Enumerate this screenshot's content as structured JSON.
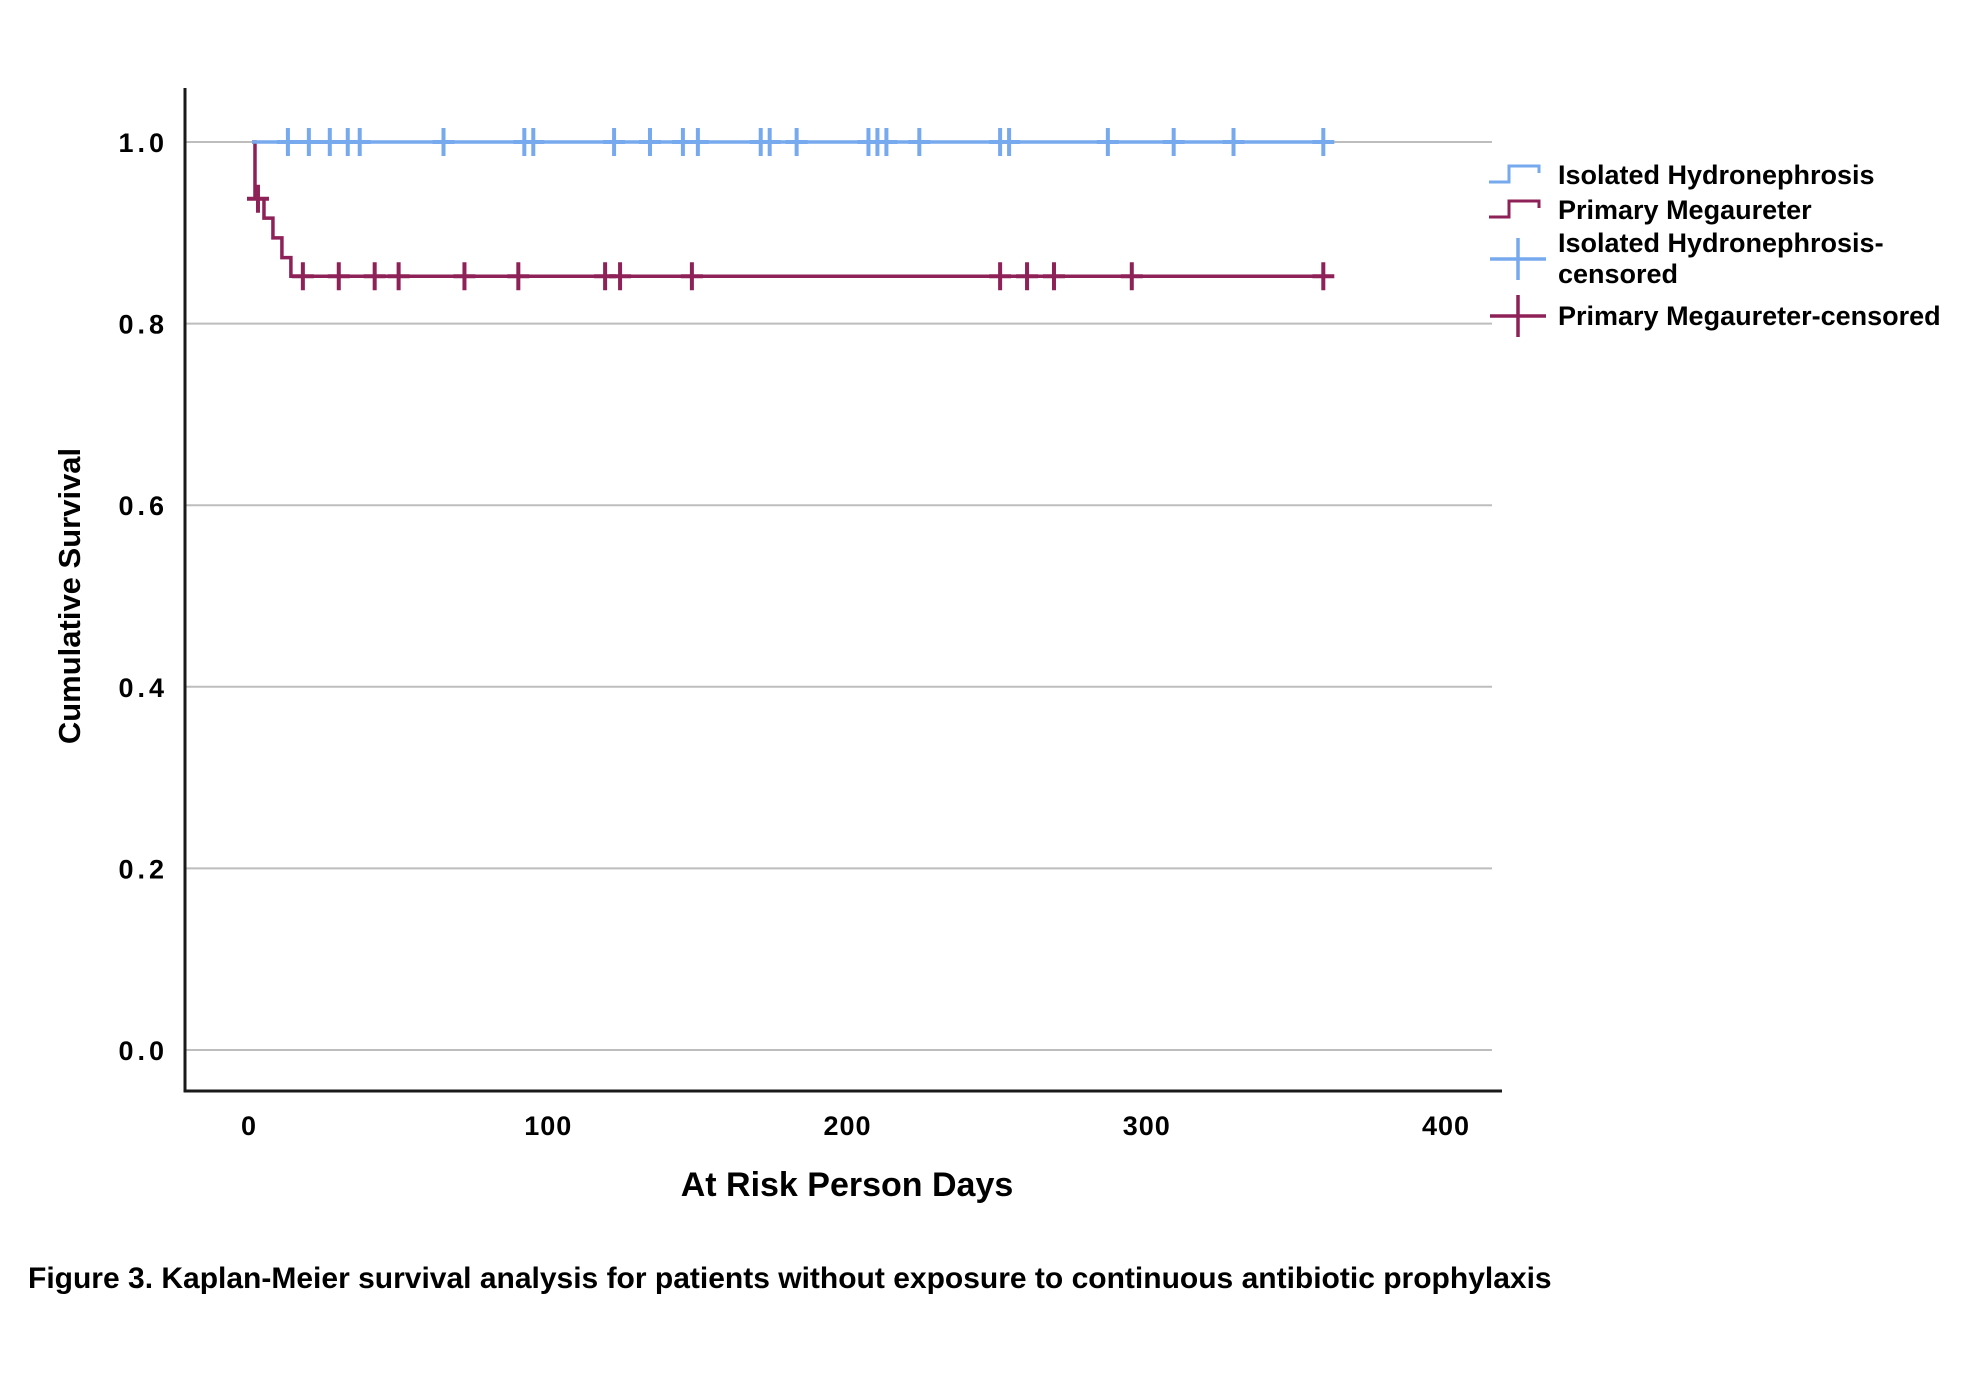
{
  "figure": {
    "caption": "Figure 3. Kaplan-Meier survival analysis for patients without exposure to continuous antibiotic prophylaxis"
  },
  "chart_data": {
    "type": "line",
    "subtype": "kaplan-meier-step",
    "title": "",
    "xlabel": "At Risk Person Days",
    "ylabel": "Cumulative Survival",
    "xticks": [
      0,
      100,
      200,
      300,
      400
    ],
    "xtick_labels": [
      "0",
      "100",
      "200",
      "300",
      "400"
    ],
    "yticks": [
      0.0,
      0.2,
      0.4,
      0.6,
      0.8,
      1.0
    ],
    "ytick_labels": [
      "0.0",
      "0.2",
      "0.4",
      "0.6",
      "0.8",
      "1.0"
    ],
    "xlim": [
      -21,
      416
    ],
    "ylim": [
      -0.045,
      1.06
    ],
    "grid": "horizontal",
    "legend_position": "right",
    "colors": {
      "grid": "#BDBDBD",
      "axis": "#1a1a1a",
      "text": "#000000",
      "background": "#ffffff"
    },
    "series": [
      {
        "name": "Isolated Hydronephrosis",
        "color": "#76A9EE",
        "steps": [
          [
            1,
            1.0
          ],
          [
            362,
            1.0
          ]
        ],
        "censored": [
          [
            13,
            1.0
          ],
          [
            20,
            1.0
          ],
          [
            27,
            1.0
          ],
          [
            33,
            1.0
          ],
          [
            37,
            1.0
          ],
          [
            65,
            1.0
          ],
          [
            92,
            1.0
          ],
          [
            95,
            1.0
          ],
          [
            122,
            1.0
          ],
          [
            134,
            1.0
          ],
          [
            145,
            1.0
          ],
          [
            150,
            1.0
          ],
          [
            171,
            1.0
          ],
          [
            174,
            1.0
          ],
          [
            183,
            1.0
          ],
          [
            207,
            1.0
          ],
          [
            210,
            1.0
          ],
          [
            213,
            1.0
          ],
          [
            224,
            1.0
          ],
          [
            251,
            1.0
          ],
          [
            254,
            1.0
          ],
          [
            287,
            1.0
          ],
          [
            309,
            1.0
          ],
          [
            329,
            1.0
          ],
          [
            359,
            1.0
          ]
        ]
      },
      {
        "name": "Primary Megaureter",
        "color": "#8E2157",
        "steps": [
          [
            1,
            1.0
          ],
          [
            2,
            0.9375
          ],
          [
            5,
            0.9162
          ],
          [
            8,
            0.8944
          ],
          [
            11,
            0.8726
          ],
          [
            14,
            0.8521
          ],
          [
            362,
            0.8521
          ]
        ],
        "censored": [
          [
            3,
            0.9375
          ],
          [
            18,
            0.8521
          ],
          [
            30,
            0.8521
          ],
          [
            42,
            0.8521
          ],
          [
            50,
            0.8521
          ],
          [
            72,
            0.8521
          ],
          [
            90,
            0.8521
          ],
          [
            119,
            0.8521
          ],
          [
            124,
            0.8521
          ],
          [
            148,
            0.8521
          ],
          [
            251,
            0.8521
          ],
          [
            260,
            0.8521
          ],
          [
            269,
            0.8521
          ],
          [
            295,
            0.8521
          ],
          [
            359,
            0.8521
          ]
        ]
      }
    ],
    "legend": [
      {
        "label": "Isolated Hydronephrosis",
        "symbol": "step",
        "series": 0
      },
      {
        "label": "Primary Megaureter",
        "symbol": "step",
        "series": 1
      },
      {
        "label": "Isolated Hydronephrosis-censored",
        "symbol": "plus",
        "series": 0
      },
      {
        "label": "Primary Megaureter-censored",
        "symbol": "plus",
        "series": 1
      }
    ]
  }
}
